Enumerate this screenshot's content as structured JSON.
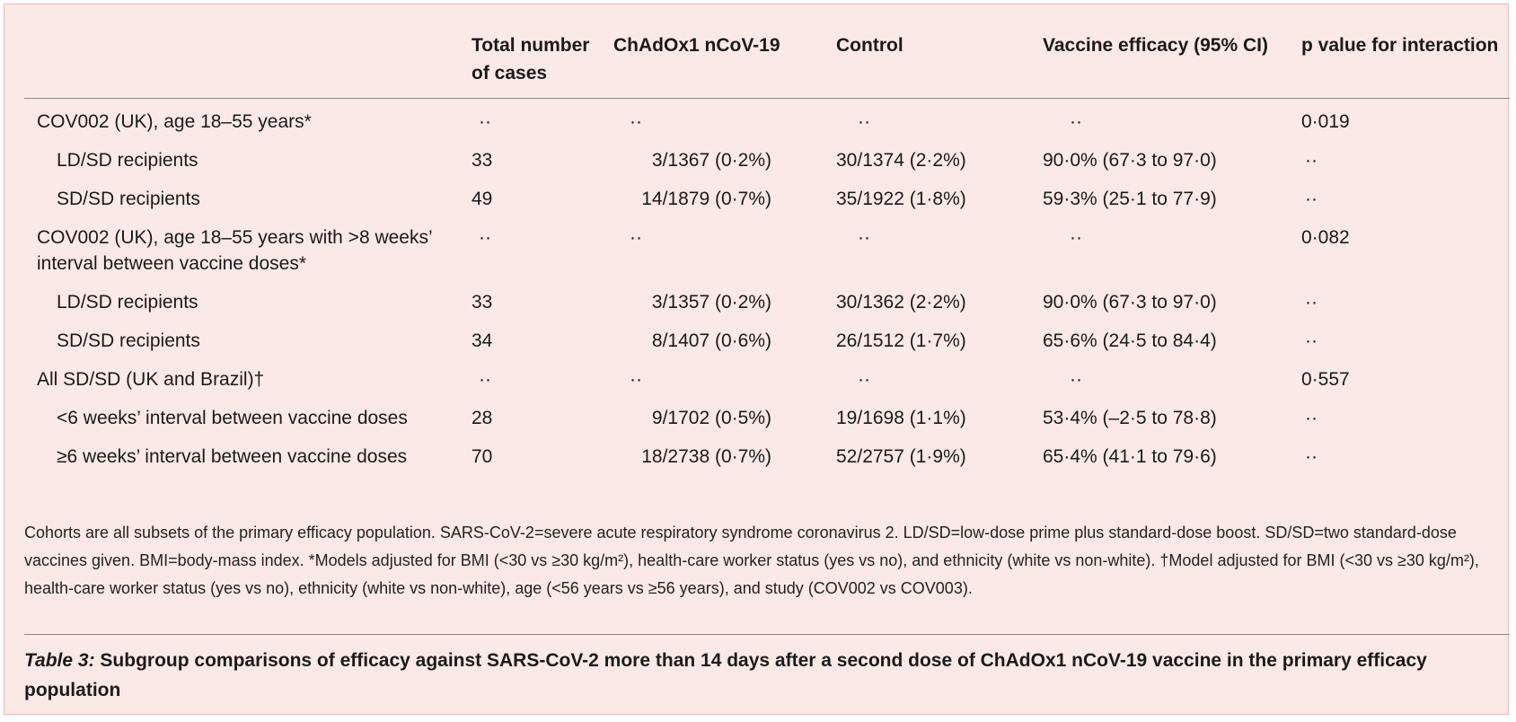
{
  "table": {
    "headers": [
      "",
      "Total number of cases",
      "ChAdOx1 nCoV-19",
      "Control",
      "Vaccine efficacy (95% CI)",
      "p value for interaction"
    ],
    "rows": [
      {
        "label": "COV002 (UK), age 18–55 years*",
        "sub": false,
        "total": "··",
        "vaccine": "··",
        "control": "··",
        "efficacy": "··",
        "p": "0·019"
      },
      {
        "label": "LD/SD recipients",
        "sub": true,
        "total": "33",
        "vaccine": "3/1367 (0·2%)",
        "control": "30/1374 (2·2%)",
        "efficacy": "90·0% (67·3 to 97·0)",
        "p": "··"
      },
      {
        "label": "SD/SD recipients",
        "sub": true,
        "total": "49",
        "vaccine": "14/1879 (0·7%)",
        "control": "35/1922 (1·8%)",
        "efficacy": "59·3% (25·1 to 77·9)",
        "p": "··"
      },
      {
        "label": "COV002 (UK), age 18–55 years with >8 weeks’ interval between vaccine doses*",
        "sub": false,
        "total": "··",
        "vaccine": "··",
        "control": "··",
        "efficacy": "··",
        "p": "0·082"
      },
      {
        "label": "LD/SD recipients",
        "sub": true,
        "total": "33",
        "vaccine": "3/1357 (0·2%)",
        "control": "30/1362 (2·2%)",
        "efficacy": "90·0% (67·3 to 97·0)",
        "p": "··"
      },
      {
        "label": "SD/SD recipients",
        "sub": true,
        "total": "34",
        "vaccine": "8/1407 (0·6%)",
        "control": "26/1512 (1·7%)",
        "efficacy": "65·6% (24·5 to 84·4)",
        "p": "··"
      },
      {
        "label": "All SD/SD (UK and Brazil)†",
        "sub": false,
        "total": "··",
        "vaccine": "··",
        "control": "··",
        "efficacy": "··",
        "p": "0·557"
      },
      {
        "label": "<6 weeks’ interval between vaccine doses",
        "sub": true,
        "total": "28",
        "vaccine": "9/1702 (0·5%)",
        "control": "19/1698 (1·1%)",
        "efficacy": "53·4% (–2·5 to 78·8)",
        "p": "··"
      },
      {
        "label": "≥6 weeks’ interval between vaccine doses",
        "sub": true,
        "total": "70",
        "vaccine": "18/2738 (0·7%)",
        "control": "52/2757 (1·9%)",
        "efficacy": "65·4% (41·1 to 79·6)",
        "p": "··"
      }
    ]
  },
  "footnote": "Cohorts are all subsets of the primary efficacy population. SARS-CoV-2=severe acute respiratory syndrome coronavirus 2. LD/SD=low-dose prime plus standard-dose boost. SD/SD=two standard-dose vaccines given. BMI=body-mass index. *Models adjusted for BMI (<30 vs ≥30 kg/m²), health-care worker status (yes vs no), and ethnicity (white vs non-white). †Model adjusted for BMI (<30 vs ≥30 kg/m²), health-care worker status (yes vs no), ethnicity (white vs non-white), age (<56 years vs ≥56 years), and study (COV002 vs COV003).",
  "caption": {
    "tag": "Table 3:",
    "text": " Subgroup comparisons of efficacy against SARS-CoV-2 more than 14 days after a second dose of ChAdOx1 nCoV-19 vaccine in the primary efficacy population"
  },
  "colors": {
    "panel_background": "#fbe9e7",
    "panel_border": "#e6b8b4",
    "rule": "#8a8a8a"
  }
}
